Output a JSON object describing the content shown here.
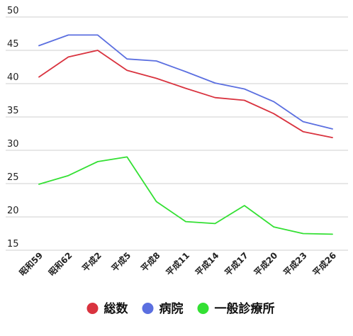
{
  "chart_data": {
    "type": "line",
    "categories": [
      "昭和59",
      "昭和62",
      "平成2",
      "平成5",
      "平成8",
      "平成11",
      "平成14",
      "平成17",
      "平成20",
      "平成23",
      "平成26"
    ],
    "series": [
      {
        "name": "総数",
        "color": "#d9333f",
        "values": [
          41.0,
          44.0,
          45.0,
          42.0,
          40.8,
          39.3,
          37.9,
          37.5,
          35.5,
          32.8,
          31.9
        ]
      },
      {
        "name": "病院",
        "color": "#5b6fe0",
        "values": [
          45.7,
          47.3,
          47.3,
          43.7,
          43.4,
          41.8,
          40.1,
          39.2,
          37.3,
          34.3,
          33.2
        ]
      },
      {
        "name": "一般診療所",
        "color": "#33e033",
        "values": [
          24.9,
          26.2,
          28.3,
          29.0,
          22.3,
          19.3,
          19.0,
          21.7,
          18.5,
          17.5,
          17.4
        ]
      }
    ],
    "yticks": [
      15,
      20,
      25,
      30,
      35,
      40,
      45,
      50
    ],
    "ylim": [
      15,
      50
    ],
    "grid": true,
    "legend_position": "bottom"
  }
}
